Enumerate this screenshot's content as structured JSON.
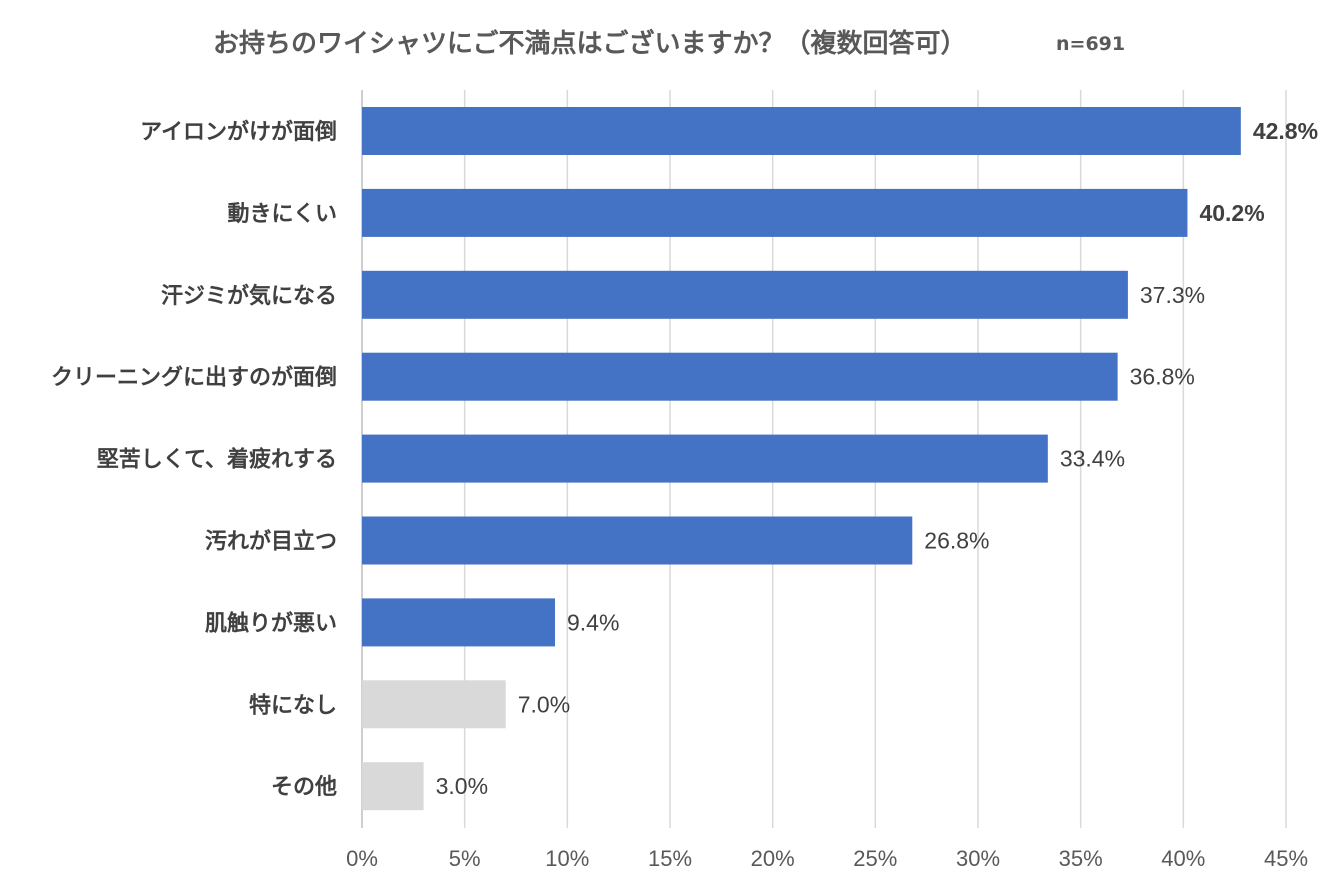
{
  "chart_data": {
    "type": "bar",
    "orientation": "horizontal",
    "title": "お持ちのワイシャツにご不満点はございますか？（複数回答可）",
    "sample_size": "n=691",
    "categories": [
      "アイロンがけが面倒",
      "動きにくい",
      "汗ジミが気になる",
      "クリーニングに出すのが面倒",
      "堅苦しくて、着疲れする",
      "汚れが目立つ",
      "肌触りが悪い",
      "特になし",
      "その他"
    ],
    "values": [
      42.8,
      40.2,
      37.3,
      36.8,
      33.4,
      26.8,
      9.4,
      7.0,
      3.0
    ],
    "value_labels": [
      "42.8%",
      "40.2%",
      "37.3%",
      "36.8%",
      "33.4%",
      "26.8%",
      "9.4%",
      "7.0%",
      "3.0%"
    ],
    "label_bold": [
      true,
      true,
      false,
      false,
      false,
      false,
      false,
      false,
      false
    ],
    "bar_colors": [
      "#4472c4",
      "#4472c4",
      "#4472c4",
      "#4472c4",
      "#4472c4",
      "#4472c4",
      "#4472c4",
      "#d9d9d9",
      "#d9d9d9"
    ],
    "xlim": [
      0,
      45
    ],
    "x_ticks": [
      0,
      5,
      10,
      15,
      20,
      25,
      30,
      35,
      40,
      45
    ],
    "x_tick_labels": [
      "0%",
      "5%",
      "10%",
      "15%",
      "20%",
      "25%",
      "30%",
      "35%",
      "40%",
      "45%"
    ],
    "xlabel": "",
    "ylabel": "",
    "grid": true,
    "legend": "none"
  }
}
